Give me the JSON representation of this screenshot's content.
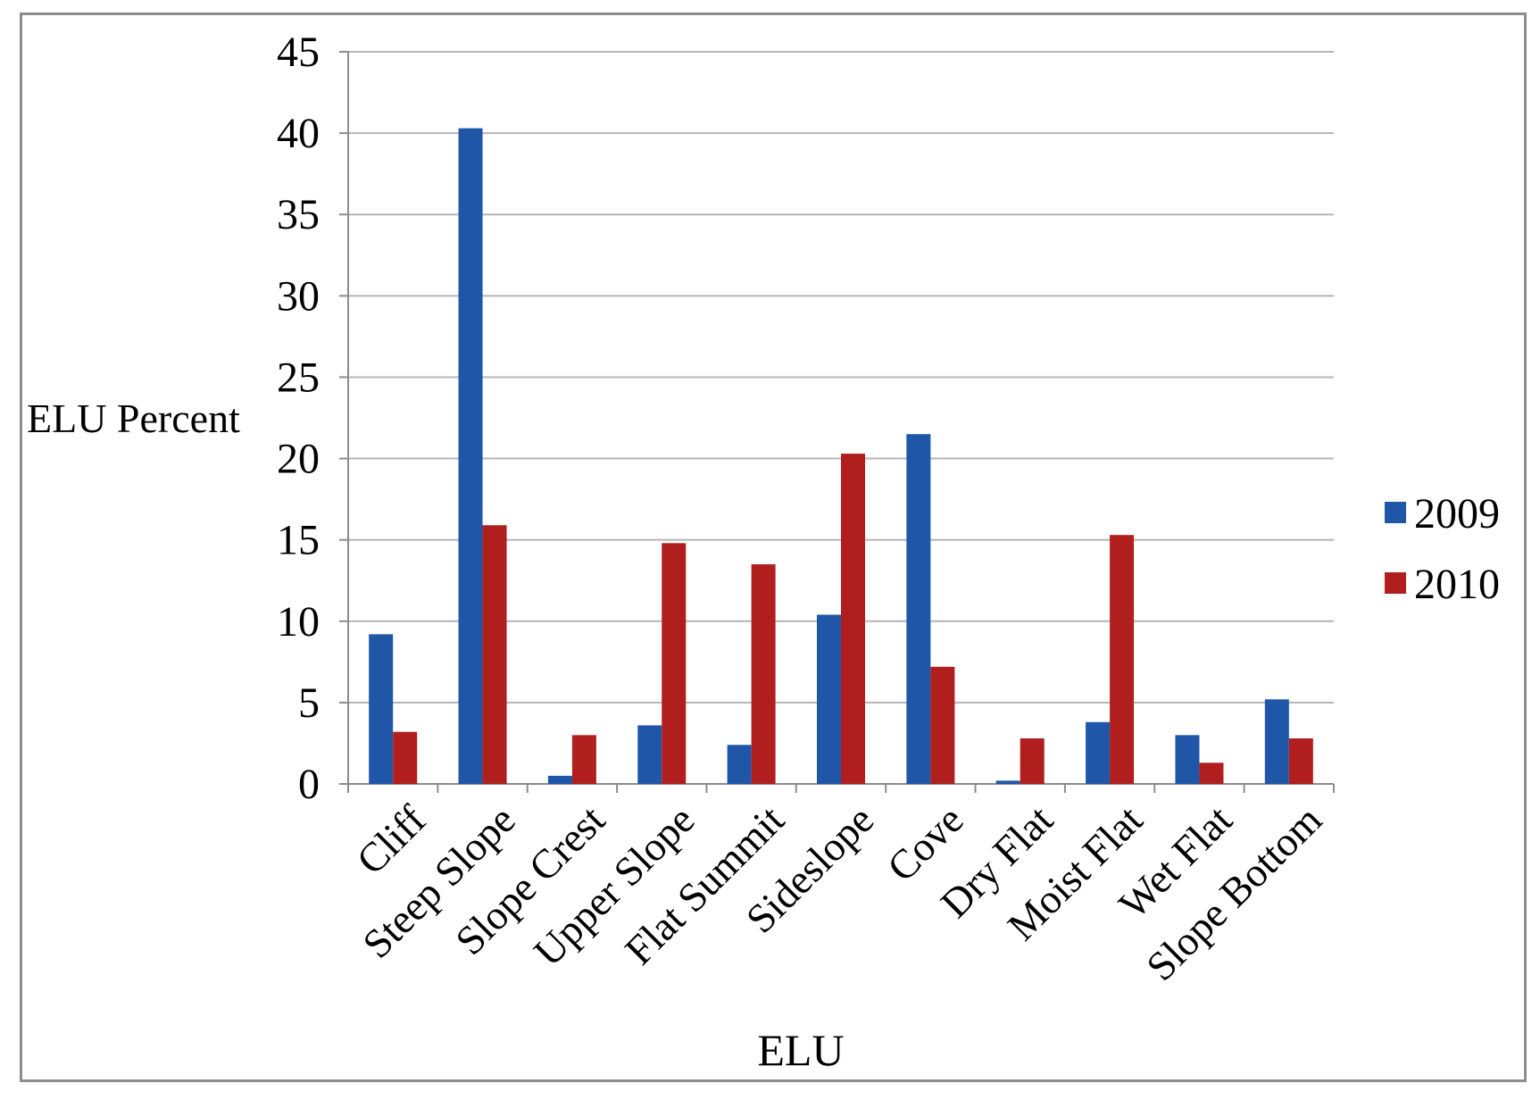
{
  "chart_data": {
    "type": "bar",
    "xlabel": "ELU",
    "ylabel": "ELU Percent",
    "ylim": [
      0,
      45
    ],
    "yticks": [
      0,
      5,
      10,
      15,
      20,
      25,
      30,
      35,
      40,
      45
    ],
    "grid": true,
    "legend_position": "right",
    "categories": [
      "Cliff",
      "Steep Slope",
      "Slope Crest",
      "Upper Slope",
      "Flat Summit",
      "Sideslope",
      "Cove",
      "Dry Flat",
      "Moist Flat",
      "Wet Flat",
      "Slope Bottom"
    ],
    "series": [
      {
        "name": "2009",
        "color": "#1f56a8",
        "values": [
          9.2,
          40.3,
          0.5,
          3.6,
          2.4,
          10.4,
          21.5,
          0.2,
          3.8,
          3.0,
          5.2
        ]
      },
      {
        "name": "2010",
        "color": "#b01e1e",
        "values": [
          3.2,
          15.9,
          3.0,
          14.8,
          13.5,
          20.3,
          7.2,
          2.8,
          15.3,
          1.3,
          2.8
        ]
      }
    ]
  }
}
